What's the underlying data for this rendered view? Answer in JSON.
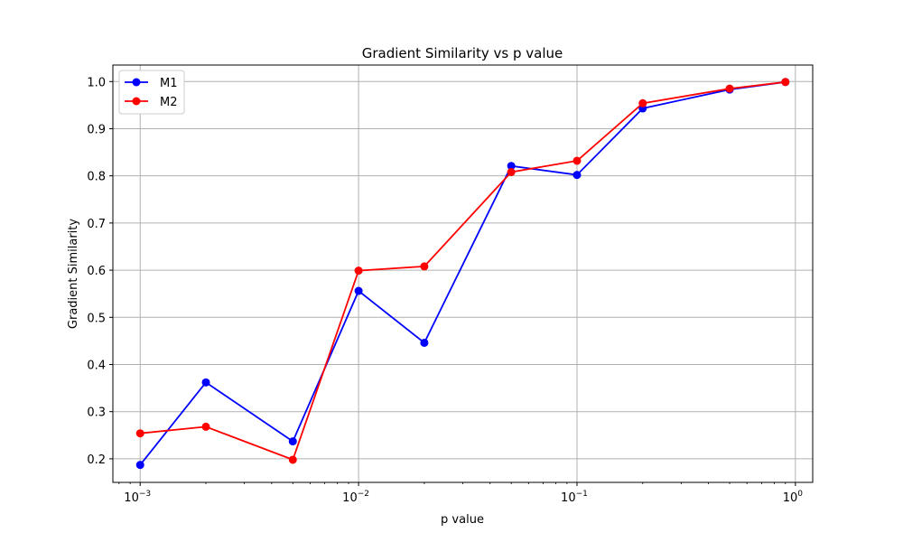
{
  "chart_data": {
    "type": "line",
    "title": "Gradient Similarity vs p value",
    "xlabel": "p value",
    "ylabel": "Gradient Similarity",
    "xscale": "log",
    "xlim": [
      0.00075,
      1.2
    ],
    "ylim": [
      0.15,
      1.035
    ],
    "grid": true,
    "legend_position": "top-left",
    "x": [
      0.001,
      0.002,
      0.005,
      0.01,
      0.02,
      0.05,
      0.1,
      0.2,
      0.5,
      0.9
    ],
    "x_ticks": [
      {
        "value": 0.001,
        "base": "10",
        "exp": "−3"
      },
      {
        "value": 0.01,
        "base": "10",
        "exp": "−2"
      },
      {
        "value": 0.1,
        "base": "10",
        "exp": "−1"
      },
      {
        "value": 1,
        "base": "10",
        "exp": "0"
      }
    ],
    "y_ticks": [
      0.2,
      0.3,
      0.4,
      0.5,
      0.6,
      0.7,
      0.8,
      0.9,
      1.0
    ],
    "series": [
      {
        "name": "M1",
        "color": "#0000ff",
        "values": [
          0.187,
          0.362,
          0.237,
          0.556,
          0.446,
          0.821,
          0.802,
          0.943,
          0.983,
          0.999
        ]
      },
      {
        "name": "M2",
        "color": "#ff0000",
        "values": [
          0.254,
          0.268,
          0.198,
          0.599,
          0.608,
          0.808,
          0.832,
          0.954,
          0.985,
          0.999
        ]
      }
    ]
  }
}
